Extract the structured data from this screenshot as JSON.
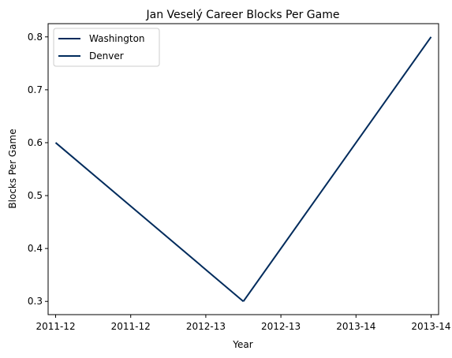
{
  "chart_data": {
    "type": "line",
    "title": "Jan Veselý Career Blocks Per Game",
    "xlabel": "Year",
    "ylabel": "Blocks Per Game",
    "x_tick_labels": [
      "2011-12",
      "2011-12",
      "2012-13",
      "2012-13",
      "2013-14",
      "2013-14"
    ],
    "x_positions": [
      0,
      1,
      2,
      3,
      4,
      5
    ],
    "xlim": [
      -0.1,
      5.1
    ],
    "ylim": [
      0.275,
      0.825
    ],
    "y_ticks": [
      0.3,
      0.4,
      0.5,
      0.6,
      0.7,
      0.8
    ],
    "y_tick_labels": [
      "0.3",
      "0.4",
      "0.5",
      "0.6",
      "0.7",
      "0.8"
    ],
    "series": [
      {
        "name": "Washington",
        "x": [
          0,
          2.5
        ],
        "y": [
          0.6,
          0.3
        ],
        "color": "#002b5c"
      },
      {
        "name": "Denver",
        "x": [
          2.5,
          5
        ],
        "y": [
          0.3,
          0.8
        ],
        "color": "#002b5c"
      }
    ],
    "legend_position": "top-left",
    "grid": false
  }
}
